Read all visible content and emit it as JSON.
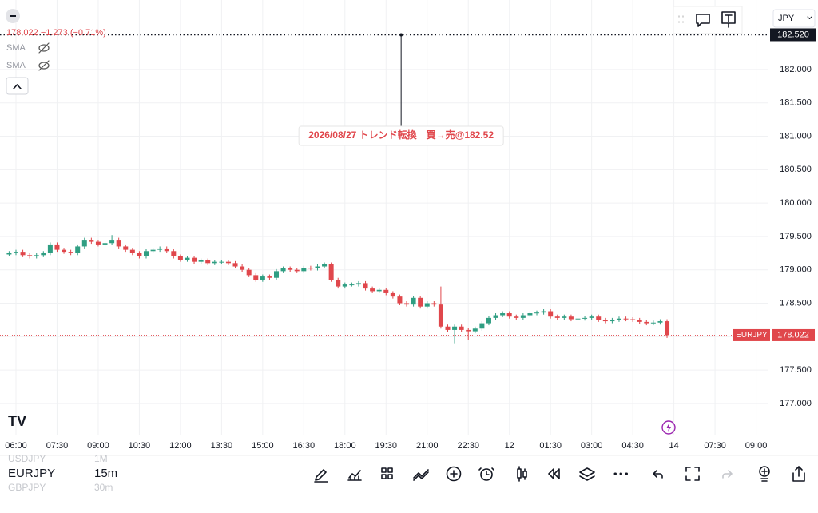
{
  "header": {
    "currency": "JPY",
    "quote": "178.022 −1.273 (−0.71%)",
    "indicators": [
      "SMA",
      "SMA"
    ]
  },
  "chart_data": {
    "type": "candlestick",
    "symbol": "EURJPY",
    "up_color": "#2f9e82",
    "down_color": "#e0474c",
    "open": [
      179.23,
      179.25,
      179.27,
      179.22,
      179.2,
      179.22,
      179.25,
      179.38,
      179.3,
      179.27,
      179.25,
      179.35,
      179.45,
      179.42,
      179.38,
      179.4,
      179.45,
      179.35,
      179.3,
      179.25,
      179.2,
      179.28,
      179.3,
      179.32,
      179.28,
      179.2,
      179.15,
      179.18,
      179.12,
      179.14,
      179.1,
      179.12,
      179.12,
      179.1,
      179.05,
      179.0,
      178.92,
      178.85,
      178.9,
      178.88,
      178.98,
      179.02,
      179.0,
      178.98,
      179.03,
      179.02,
      179.05,
      179.08,
      178.85,
      178.75,
      178.78,
      178.78,
      178.8,
      178.72,
      178.68,
      178.7,
      178.65,
      178.6,
      178.5,
      178.48,
      178.58,
      178.45,
      178.5,
      178.48,
      178.15,
      178.1,
      178.15,
      178.1,
      178.08,
      178.12,
      178.2,
      178.28,
      178.32,
      178.35,
      178.3,
      178.28,
      178.32,
      178.35,
      178.36,
      178.38,
      178.3,
      178.28,
      178.3,
      178.26,
      178.27,
      178.28,
      178.3,
      178.25,
      178.23,
      178.25,
      178.27,
      178.26,
      178.25,
      178.22,
      178.2,
      178.21,
      178.23
    ],
    "high": [
      179.28,
      179.3,
      179.3,
      179.25,
      179.25,
      179.28,
      179.41,
      179.41,
      179.33,
      179.3,
      179.38,
      179.48,
      179.48,
      179.45,
      179.43,
      179.52,
      179.48,
      179.38,
      179.33,
      179.28,
      179.31,
      179.33,
      179.35,
      179.35,
      179.31,
      179.23,
      179.21,
      179.21,
      179.17,
      179.17,
      179.15,
      179.15,
      179.15,
      179.13,
      179.08,
      179.03,
      178.95,
      178.93,
      178.93,
      179.01,
      179.05,
      179.05,
      179.03,
      179.06,
      179.06,
      179.08,
      179.11,
      179.11,
      178.88,
      178.81,
      178.81,
      178.83,
      178.83,
      178.75,
      178.73,
      178.73,
      178.68,
      178.63,
      178.53,
      178.61,
      178.61,
      178.53,
      178.53,
      178.75,
      178.18,
      178.18,
      178.18,
      178.13,
      178.15,
      178.23,
      178.31,
      178.35,
      178.38,
      178.38,
      178.33,
      178.35,
      178.38,
      178.39,
      178.41,
      178.41,
      178.33,
      178.33,
      178.33,
      178.3,
      178.31,
      178.33,
      178.33,
      178.28,
      178.28,
      178.3,
      178.3,
      178.29,
      178.28,
      178.25,
      178.24,
      178.26,
      178.26
    ],
    "low": [
      179.2,
      179.22,
      179.19,
      179.17,
      179.17,
      179.19,
      179.22,
      179.27,
      179.24,
      179.22,
      179.22,
      179.32,
      179.39,
      179.35,
      179.35,
      179.37,
      179.32,
      179.27,
      179.22,
      179.17,
      179.17,
      179.25,
      179.27,
      179.25,
      179.17,
      179.12,
      179.12,
      179.09,
      179.09,
      179.07,
      179.07,
      179.09,
      179.07,
      179.02,
      178.97,
      178.89,
      178.82,
      178.82,
      178.85,
      178.85,
      178.95,
      178.97,
      178.95,
      178.95,
      178.99,
      178.99,
      179.02,
      178.82,
      178.72,
      178.72,
      178.75,
      178.75,
      178.69,
      178.65,
      178.65,
      178.62,
      178.57,
      178.47,
      178.45,
      178.45,
      178.42,
      178.42,
      178.45,
      178.12,
      178.07,
      177.9,
      178.07,
      177.95,
      178.05,
      178.09,
      178.17,
      178.25,
      178.29,
      178.27,
      178.25,
      178.25,
      178.29,
      178.32,
      178.33,
      178.27,
      178.25,
      178.25,
      178.23,
      178.23,
      178.24,
      178.25,
      178.22,
      178.2,
      178.2,
      178.22,
      178.23,
      178.22,
      178.19,
      178.17,
      178.17,
      178.18,
      177.98
    ],
    "close": [
      179.25,
      179.27,
      179.22,
      179.2,
      179.22,
      179.25,
      179.38,
      179.3,
      179.27,
      179.25,
      179.35,
      179.45,
      179.42,
      179.38,
      179.4,
      179.45,
      179.35,
      179.3,
      179.25,
      179.2,
      179.28,
      179.3,
      179.32,
      179.28,
      179.2,
      179.15,
      179.18,
      179.12,
      179.14,
      179.1,
      179.12,
      179.12,
      179.1,
      179.05,
      179.0,
      178.92,
      178.85,
      178.9,
      178.88,
      178.98,
      179.02,
      179.0,
      178.98,
      179.03,
      179.02,
      179.05,
      179.08,
      178.85,
      178.75,
      178.78,
      178.78,
      178.8,
      178.72,
      178.68,
      178.7,
      178.65,
      178.6,
      178.5,
      178.48,
      178.58,
      178.45,
      178.5,
      178.48,
      178.15,
      178.1,
      178.15,
      178.1,
      178.08,
      178.12,
      178.2,
      178.28,
      178.32,
      178.35,
      178.3,
      178.28,
      178.32,
      178.35,
      178.36,
      178.38,
      178.3,
      178.28,
      178.3,
      178.26,
      178.27,
      178.28,
      178.3,
      178.25,
      178.23,
      178.25,
      178.27,
      178.26,
      178.25,
      178.22,
      178.2,
      178.21,
      178.23,
      178.022
    ],
    "xlim": [
      -1.33,
      110.8
    ],
    "xticks": [
      {
        "value": 1,
        "label": "06:00"
      },
      {
        "value": 7,
        "label": "07:30"
      },
      {
        "value": 13,
        "label": "09:00"
      },
      {
        "value": 19,
        "label": "10:30"
      },
      {
        "value": 25,
        "label": "12:00"
      },
      {
        "value": 31,
        "label": "13:30"
      },
      {
        "value": 37,
        "label": "15:00"
      },
      {
        "value": 43,
        "label": "16:30"
      },
      {
        "value": 49,
        "label": "18:00"
      },
      {
        "value": 55,
        "label": "19:30"
      },
      {
        "value": 61,
        "label": "21:00"
      },
      {
        "value": 67,
        "label": "22:30"
      },
      {
        "value": 73,
        "label": "12"
      },
      {
        "value": 79,
        "label": "01:30"
      },
      {
        "value": 85,
        "label": "03:00"
      },
      {
        "value": 91,
        "label": "04:30"
      },
      {
        "value": 97,
        "label": "14"
      },
      {
        "value": 103,
        "label": "07:30"
      },
      {
        "value": 109,
        "label": "09:00"
      }
    ],
    "ylim": [
      176.52,
      183.04
    ],
    "yticks": [
      {
        "value": 177,
        "label": "177.000"
      },
      {
        "value": 177.5,
        "label": "177.500"
      },
      {
        "value": 178,
        "label": "178.000"
      },
      {
        "value": 178.5,
        "label": "178.500"
      },
      {
        "value": 179,
        "label": "179.000"
      },
      {
        "value": 179.5,
        "label": "179.500"
      },
      {
        "value": 180,
        "label": "180.000"
      },
      {
        "value": 180.5,
        "label": "180.500"
      },
      {
        "value": 181,
        "label": "181.000"
      },
      {
        "value": 181.5,
        "label": "181.500"
      },
      {
        "value": 182,
        "label": "182.000"
      }
    ],
    "grid": true,
    "last_price": {
      "value": 178.022,
      "label": "178.022"
    },
    "marker_price": {
      "value": 182.52,
      "label": "182.520"
    },
    "annotation": {
      "text": "2026/08/27 トレンド転換　買→売@182.52",
      "x": 57.2,
      "y": 182.52
    }
  },
  "footer": {
    "symbols": [
      {
        "symbol": "USDJPY",
        "interval": "1M"
      },
      {
        "symbol": "EURJPY",
        "interval": "15m"
      },
      {
        "symbol": "GBPJPY",
        "interval": "30m"
      }
    ]
  }
}
